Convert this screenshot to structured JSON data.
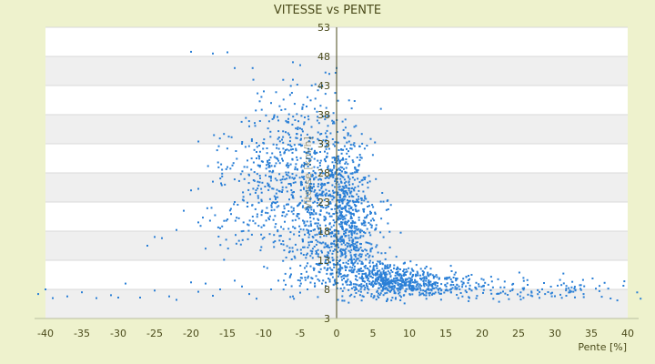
{
  "chart_data": {
    "type": "scatter",
    "title": "VITESSE vs PENTE",
    "xlabel": "Pente [%]",
    "ylabel": "Vitesse [km/h]",
    "xlim": [
      -40,
      40
    ],
    "ylim": [
      3,
      53
    ],
    "xticks": [
      "-40",
      "-35",
      "-30",
      "-25",
      "-20",
      "-15",
      "-10",
      "-5",
      "0",
      "5",
      "10",
      "15",
      "20",
      "25",
      "30",
      "35",
      "40"
    ],
    "yticks": [
      "53",
      "48",
      "43",
      "38",
      "33",
      "28",
      "23",
      "18",
      "13",
      "8",
      "3"
    ],
    "grid": true,
    "band_colors": [
      "#ffffff",
      "#efefef"
    ],
    "axis_color": "#4a4a1a",
    "marker_color": "#2a7fd6",
    "series": [
      {
        "points": [
          [
            -41,
            7.2
          ],
          [
            -40,
            8.0
          ],
          [
            -39,
            6.5
          ],
          [
            -37,
            6.8
          ],
          [
            -35,
            7.5
          ],
          [
            -33,
            6.5
          ],
          [
            -31,
            7.0
          ],
          [
            -30,
            6.6
          ],
          [
            -29,
            9.0
          ],
          [
            -27,
            6.6
          ],
          [
            -25,
            7.8
          ],
          [
            -23,
            6.8
          ],
          [
            -22,
            6.2
          ],
          [
            -20,
            9.2
          ],
          [
            -19,
            7.6
          ],
          [
            -18,
            9.0
          ],
          [
            -17,
            6.9
          ],
          [
            -16,
            8.0
          ],
          [
            -14,
            9.5
          ],
          [
            -13,
            8.5
          ],
          [
            -12,
            7.2
          ],
          [
            -11,
            6.4
          ],
          [
            -9,
            8.0
          ],
          [
            -8,
            9.5
          ],
          [
            -7,
            8.8
          ],
          [
            -6,
            6.8
          ],
          [
            -5,
            9.5
          ],
          [
            -4,
            8.0
          ],
          [
            -3,
            8.5
          ],
          [
            -2,
            9.0
          ],
          [
            -26,
            15.5
          ],
          [
            -25,
            17.0
          ],
          [
            -24,
            16.8
          ],
          [
            -22,
            18.2
          ],
          [
            -21,
            21.5
          ],
          [
            -20,
            25.0
          ],
          [
            -19,
            19.5
          ],
          [
            -18,
            15.0
          ],
          [
            -17,
            26.5
          ],
          [
            -16,
            18.5
          ],
          [
            -15,
            29.0
          ],
          [
            -14,
            23.0
          ],
          [
            -13,
            33.0
          ],
          [
            -12,
            36.0
          ],
          [
            -11,
            30.5
          ],
          [
            -10,
            42.0
          ],
          [
            -9,
            40.0
          ],
          [
            -8,
            37.0
          ],
          [
            -7,
            35.0
          ],
          [
            -6,
            44.0
          ],
          [
            -5,
            46.5
          ],
          [
            -4,
            41.0
          ],
          [
            -3,
            39.0
          ],
          [
            -2,
            43.0
          ],
          [
            -1,
            45.0
          ],
          [
            -20,
            48.8
          ],
          [
            -17,
            48.5
          ],
          [
            -15,
            48.7
          ],
          [
            -14,
            46.0
          ],
          [
            -6,
            47.0
          ],
          [
            0,
            46.0
          ]
        ],
        "clusters": [
          {
            "cx": -5,
            "cy": 28,
            "sx": 4.5,
            "sy": 7,
            "n": 520
          },
          {
            "cx": -10,
            "cy": 24,
            "sx": 4.5,
            "sy": 6,
            "n": 160
          },
          {
            "cx": -2.5,
            "cy": 22,
            "sx": 2.2,
            "sy": 6,
            "n": 260
          },
          {
            "cx": 1.2,
            "cy": 22,
            "sx": 1.4,
            "sy": 6.5,
            "n": 420
          },
          {
            "cx": 3.0,
            "cy": 17,
            "sx": 2.2,
            "sy": 5,
            "n": 220
          },
          {
            "cx": 5.5,
            "cy": 10.2,
            "sx": 2.5,
            "sy": 1.6,
            "n": 220
          },
          {
            "cx": 9.0,
            "cy": 9.2,
            "sx": 3.2,
            "sy": 1.3,
            "n": 300
          },
          {
            "cx": 15.0,
            "cy": 8.7,
            "sx": 3.5,
            "sy": 1.1,
            "n": 140
          },
          {
            "cx": 24.0,
            "cy": 8.0,
            "sx": 6.0,
            "sy": 1.1,
            "n": 80
          },
          {
            "cx": 34.0,
            "cy": 7.6,
            "sx": 4.0,
            "sy": 1.1,
            "n": 35
          },
          {
            "cx": -3.0,
            "cy": 12.5,
            "sx": 2.5,
            "sy": 3,
            "n": 90
          }
        ]
      }
    ]
  }
}
